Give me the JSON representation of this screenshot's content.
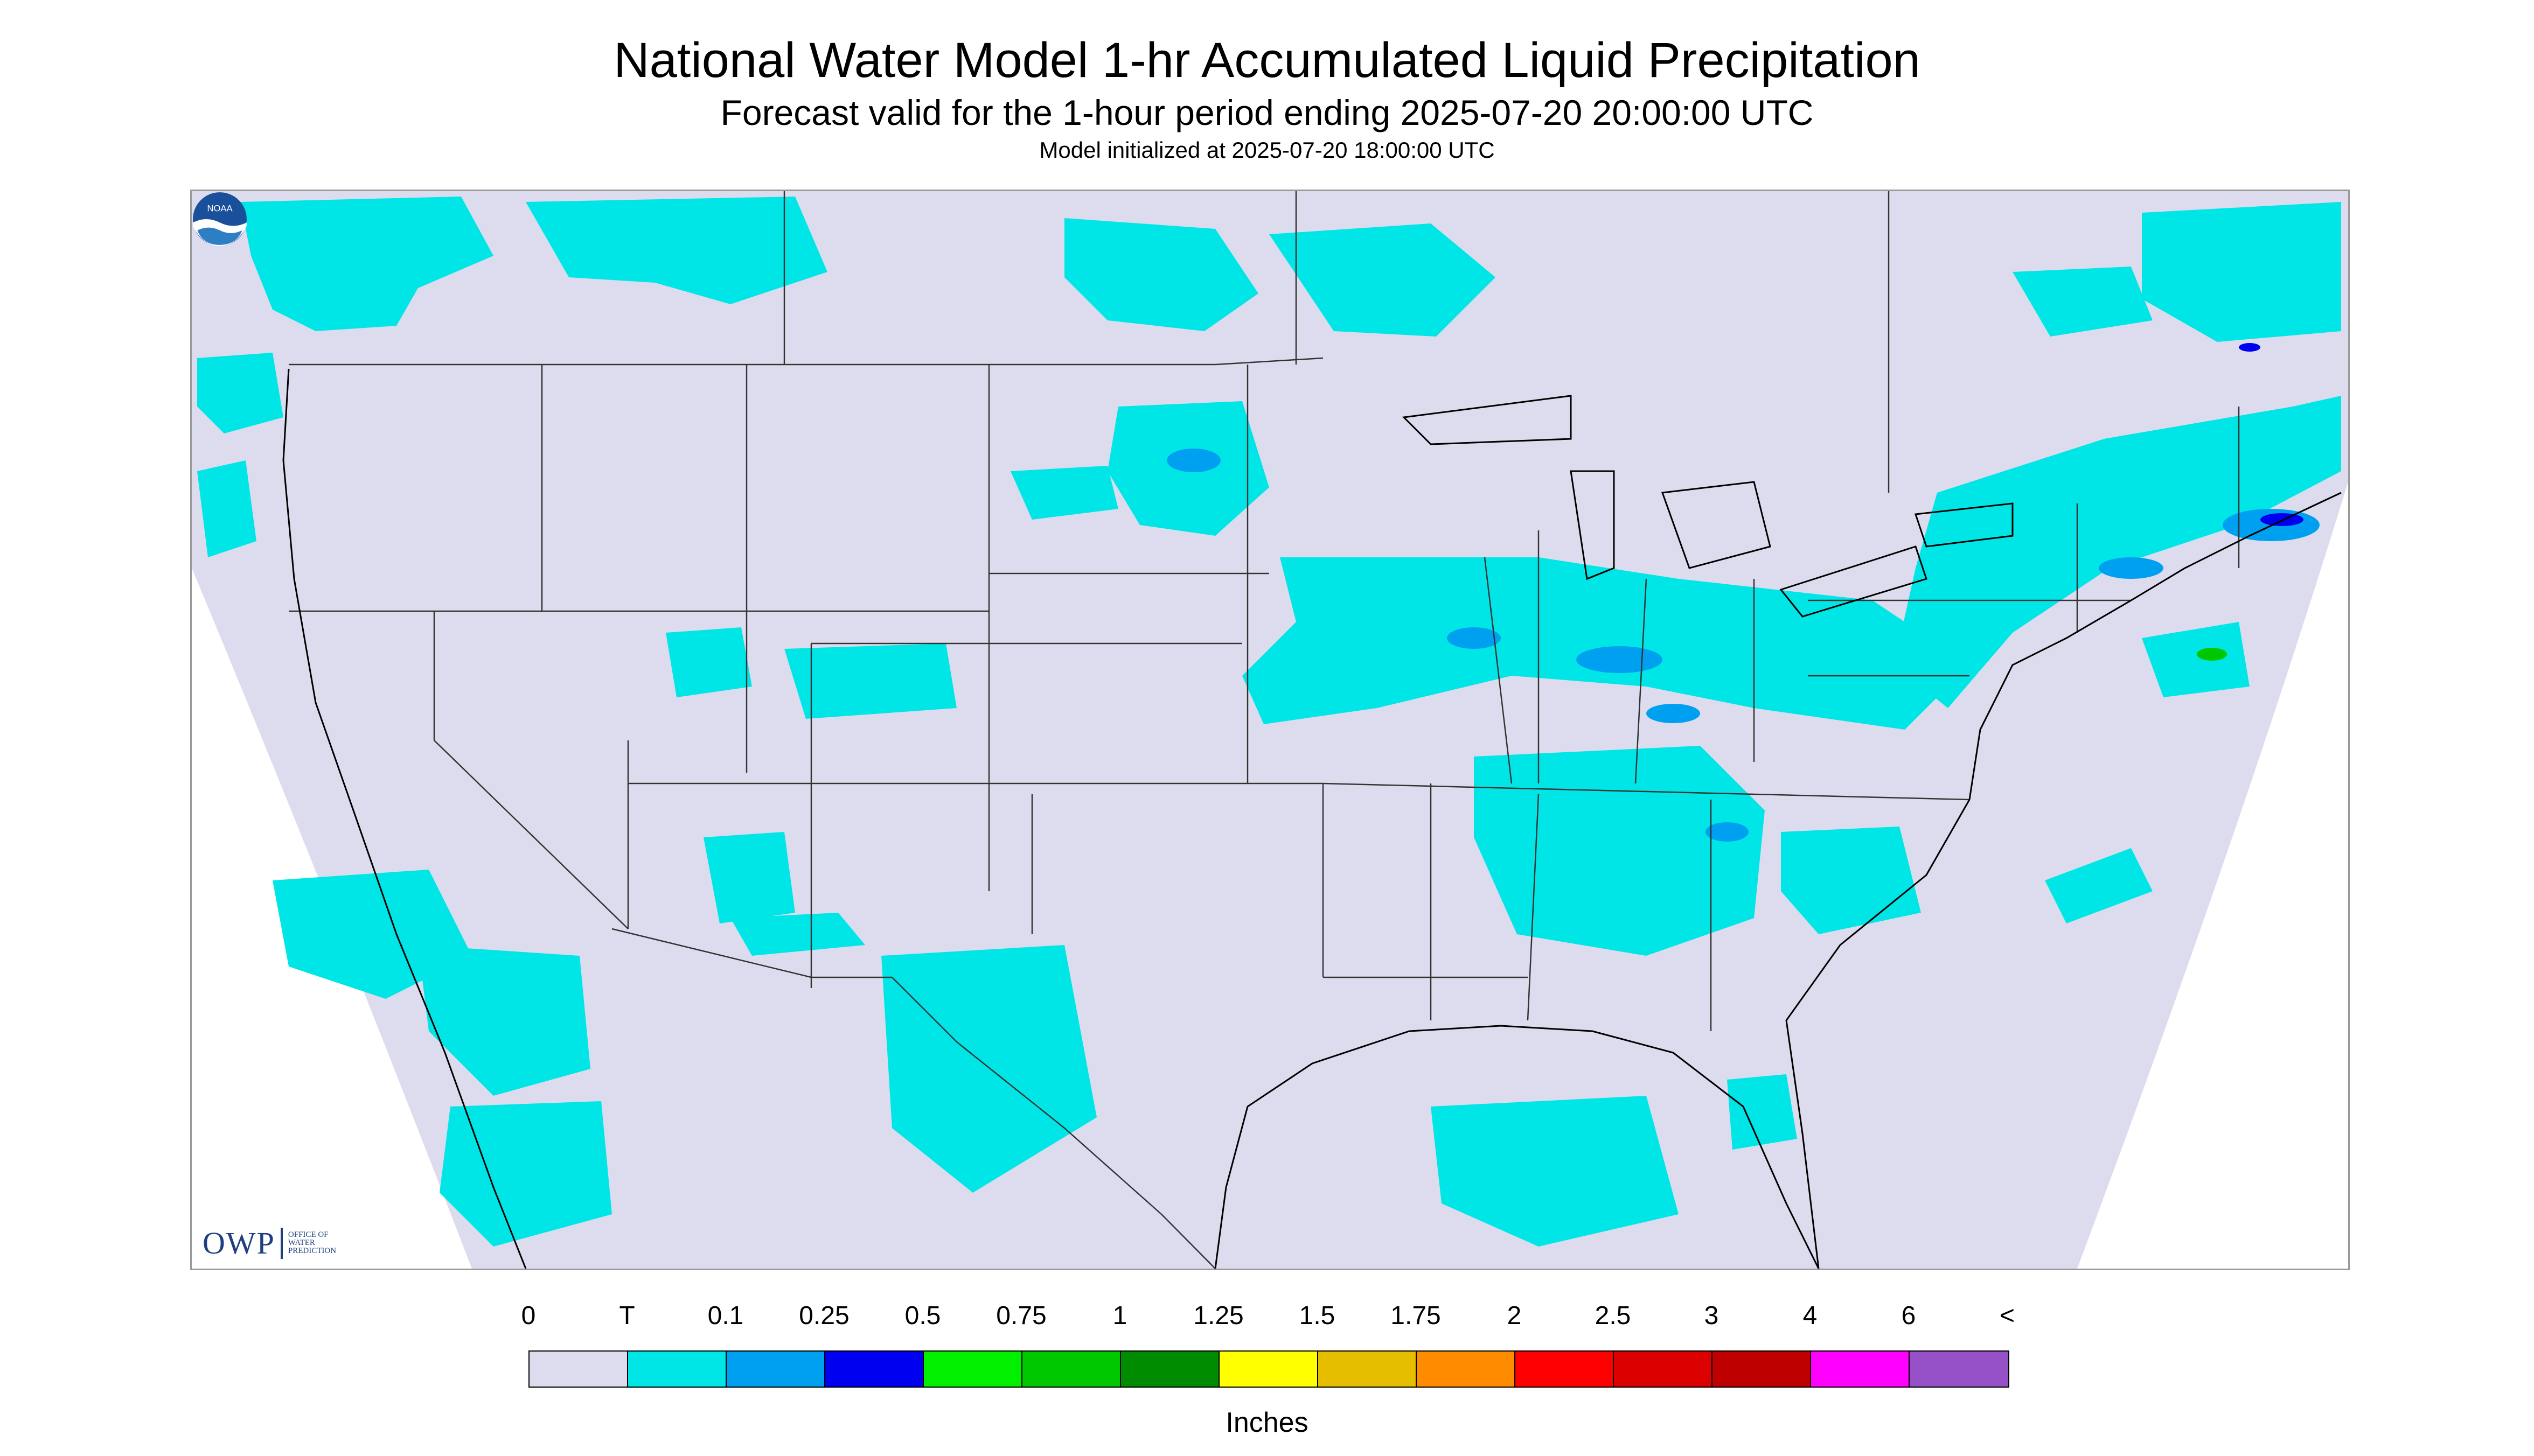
{
  "header": {
    "title": "National Water Model 1-hr Accumulated Liquid Precipitation",
    "subtitle": "Forecast valid for the 1-hour period ending 2025-07-20 20:00:00 UTC",
    "init_text": "Model initialized at 2025-07-20 18:00:00 UTC"
  },
  "logos": {
    "owp_main": "OWP",
    "owp_line1": "OFFICE OF",
    "owp_line2": "WATER",
    "owp_line3": "PREDICTION",
    "noaa": "NOAA"
  },
  "colors": {
    "background_land": "#dcdcee",
    "trace": "#00e6e6",
    "coastline": "#000000",
    "border": "#333333"
  },
  "legend": {
    "labels": [
      "0",
      "T",
      "0.1",
      "0.25",
      "0.5",
      "0.75",
      "1",
      "1.25",
      "1.5",
      "1.75",
      "2",
      "2.5",
      "3",
      "4",
      "6",
      "<"
    ],
    "colors": [
      "#dcdcee",
      "#00e6e6",
      "#00a0f0",
      "#0000f0",
      "#00f000",
      "#00c800",
      "#008c00",
      "#ffff00",
      "#e6be00",
      "#ff8c00",
      "#ff0000",
      "#dc0000",
      "#be0000",
      "#ff00ff",
      "#9650c8"
    ],
    "unit": "Inches"
  }
}
